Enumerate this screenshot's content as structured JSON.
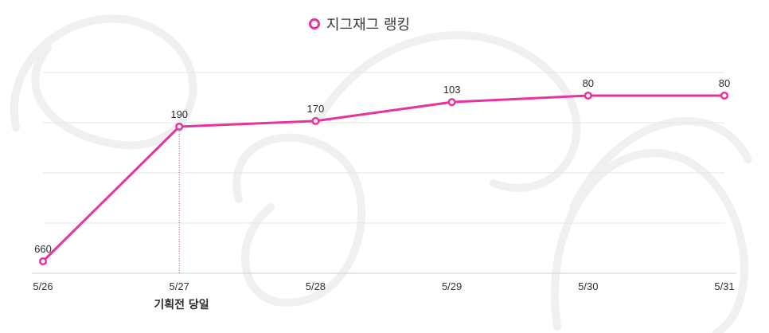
{
  "chart_data": {
    "type": "line",
    "legend": "top-center",
    "grid": true,
    "y_inverted": true,
    "categories": [
      "5/26",
      "5/27",
      "5/28",
      "5/29",
      "5/30",
      "5/31"
    ],
    "series": [
      {
        "name": "지그재그 랭킹",
        "values": [
          660,
          190,
          170,
          103,
          80,
          80
        ],
        "color": "#e8339e"
      }
    ],
    "data_labels": [
      "660",
      "190",
      "170",
      "103",
      "80",
      "80"
    ],
    "annotations": [
      {
        "category": "5/27",
        "text": "기획전 당일"
      }
    ]
  }
}
